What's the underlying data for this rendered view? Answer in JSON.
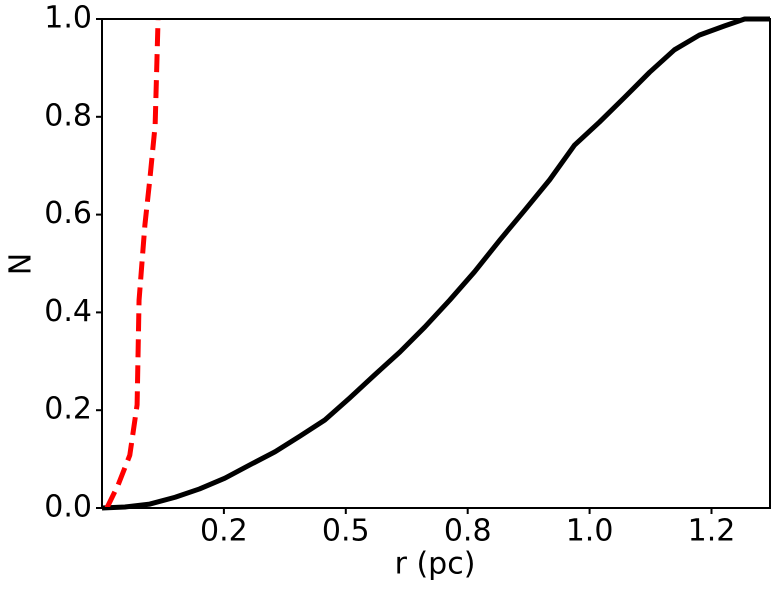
{
  "chart_data": {
    "type": "line",
    "xlabel": "r (pc)",
    "ylabel": "N",
    "xlim": [
      0,
      1.37
    ],
    "ylim": [
      0,
      1
    ],
    "xticks": [
      {
        "value": 0.25,
        "label": "0.2"
      },
      0.5,
      {
        "value": 0.75,
        "label": "0.8"
      },
      {
        "value": 1.0,
        "label": "1.0"
      },
      {
        "value": 1.25,
        "label": "1.2"
      }
    ],
    "yticks": [
      {
        "value": 0,
        "label": "0.0"
      },
      0.2,
      0.4,
      0.6,
      0.8,
      {
        "value": 1.0,
        "label": "1.0"
      }
    ],
    "series": [
      {
        "color": "#000000",
        "dash": false,
        "x": [
          0,
          0.047,
          0.098,
          0.15,
          0.2,
          0.252,
          0.303,
          0.355,
          0.406,
          0.457,
          0.508,
          0.559,
          0.611,
          0.662,
          0.713,
          0.764,
          0.816,
          0.867,
          0.918,
          0.969,
          1.02,
          1.072,
          1.123,
          1.174,
          1.225,
          1.277,
          1.318,
          1.37
        ],
        "values": [
          0,
          0.002,
          0.008,
          0.022,
          0.039,
          0.061,
          0.088,
          0.115,
          0.147,
          0.18,
          0.225,
          0.272,
          0.319,
          0.37,
          0.425,
          0.483,
          0.548,
          0.609,
          0.671,
          0.742,
          0.789,
          0.84,
          0.891,
          0.937,
          0.967,
          0.986,
          1.0,
          1.0
        ]
      },
      {
        "color": "#ff0000",
        "dash": true,
        "x": [
          0.01,
          0.033,
          0.057,
          0.072,
          0.076,
          0.088,
          0.098,
          0.109,
          0.115
        ],
        "values": [
          0,
          0.047,
          0.108,
          0.211,
          0.425,
          0.579,
          0.671,
          0.783,
          1.0
        ]
      }
    ]
  }
}
